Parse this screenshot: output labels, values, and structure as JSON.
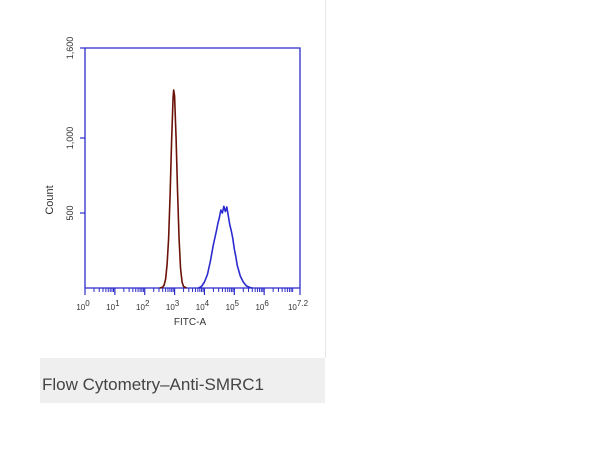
{
  "chart_data": {
    "type": "histogram-line",
    "caption": "Flow Cytometry–Anti-SMRC1",
    "xlabel": "FITC-A",
    "ylabel": "Count",
    "xscale": "log",
    "xlim": [
      0,
      7.2
    ],
    "xticks": [
      {
        "value": 0,
        "label": "10"
      },
      {
        "value": 1,
        "label": "10"
      },
      {
        "value": 2,
        "label": "10"
      },
      {
        "value": 3,
        "label": "10"
      },
      {
        "value": 4,
        "label": "10"
      },
      {
        "value": 5,
        "label": "10"
      },
      {
        "value": 6,
        "label": "10"
      },
      {
        "value": 7.2,
        "label": "10"
      }
    ],
    "ylim": [
      0,
      1600
    ],
    "yticks": [
      {
        "value": 500,
        "label": "500"
      },
      {
        "value": 1000,
        "label": "1,000"
      },
      {
        "value": 1600,
        "label": "1,600"
      }
    ],
    "frame_color": "#2b2bc8",
    "series": [
      {
        "color": "#6b1209",
        "x": [
          2.5,
          2.6,
          2.65,
          2.7,
          2.75,
          2.8,
          2.85,
          2.9,
          2.95,
          2.97,
          3.0,
          3.05,
          3.1,
          3.15,
          3.2,
          3.25,
          3.3,
          3.4
        ],
        "values": [
          0,
          5,
          20,
          60,
          160,
          330,
          620,
          980,
          1270,
          1320,
          1280,
          1000,
          640,
          330,
          130,
          40,
          10,
          0
        ]
      },
      {
        "color": "#2b2bd0",
        "x": [
          3.8,
          3.9,
          4.0,
          4.1,
          4.2,
          4.3,
          4.4,
          4.45,
          4.5,
          4.55,
          4.6,
          4.65,
          4.7,
          4.75,
          4.8,
          4.85,
          4.9,
          4.95,
          5.0,
          5.05,
          5.1,
          5.2,
          5.3,
          5.4,
          5.5,
          5.6
        ],
        "values": [
          0,
          10,
          40,
          90,
          180,
          290,
          380,
          430,
          470,
          520,
          500,
          545,
          510,
          540,
          480,
          420,
          380,
          330,
          260,
          210,
          150,
          80,
          40,
          15,
          5,
          0
        ]
      }
    ]
  }
}
